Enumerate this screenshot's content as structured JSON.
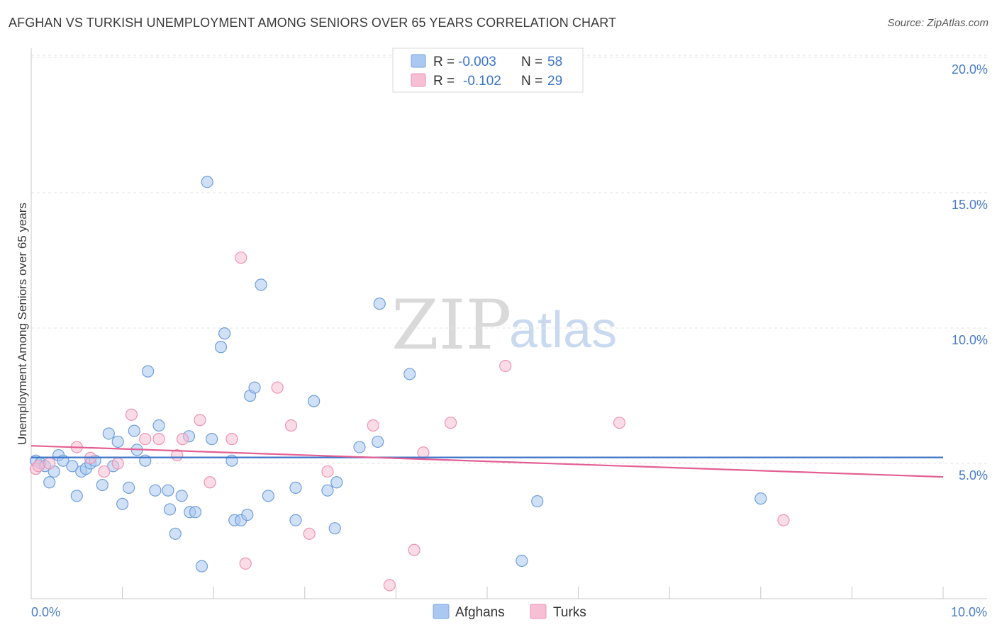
{
  "header": {
    "title": "AFGHAN VS TURKISH UNEMPLOYMENT AMONG SENIORS OVER 65 YEARS CORRELATION CHART",
    "source": "Source: ZipAtlas.com"
  },
  "watermark": {
    "zip": "ZIP",
    "atlas": "atlas"
  },
  "legend": {
    "rows": [
      {
        "r_label": "R =",
        "r_value": "-0.003",
        "n_label": "N =",
        "n_value": "58",
        "color": "#aac8f0",
        "stroke": "#7aa6e0"
      },
      {
        "r_label": "R =",
        "r_value": "-0.102",
        "n_label": "N =",
        "n_value": "29",
        "color": "#f6bfd3",
        "stroke": "#ee93b4"
      }
    ]
  },
  "bottom_legend": {
    "series1": "Afghans",
    "series2": "Turks"
  },
  "chart_data": {
    "type": "scatter",
    "title": "AFGHAN VS TURKISH UNEMPLOYMENT AMONG SENIORS OVER 65 YEARS CORRELATION CHART",
    "xlabel": "",
    "ylabel": "Unemployment Among Seniors over 65 years",
    "xlim": [
      0,
      10
    ],
    "ylim": [
      0,
      20
    ],
    "x_tick_labels": [
      "0.0%",
      "10.0%"
    ],
    "y_tick_labels": [
      "5.0%",
      "10.0%",
      "15.0%",
      "20.0%"
    ],
    "y_tick_values": [
      5,
      10,
      15,
      20
    ],
    "grid": true,
    "legend_position": "top-center",
    "series": [
      {
        "name": "Afghans",
        "color": "#aac8f0",
        "stroke": "#6f9fdc",
        "trend": {
          "x": [
            0,
            10
          ],
          "y": [
            5.22,
            5.22
          ],
          "color": "#3d74c8"
        },
        "points": [
          [
            0.05,
            5.1
          ],
          [
            0.1,
            5.0
          ],
          [
            0.15,
            4.9
          ],
          [
            0.2,
            4.3
          ],
          [
            0.25,
            4.7
          ],
          [
            0.3,
            5.3
          ],
          [
            0.35,
            5.1
          ],
          [
            0.45,
            4.9
          ],
          [
            0.5,
            3.8
          ],
          [
            0.55,
            4.7
          ],
          [
            0.6,
            4.8
          ],
          [
            0.65,
            5.0
          ],
          [
            0.7,
            5.1
          ],
          [
            0.78,
            4.2
          ],
          [
            0.85,
            6.1
          ],
          [
            0.9,
            4.9
          ],
          [
            0.95,
            5.8
          ],
          [
            1.0,
            3.5
          ],
          [
            1.07,
            4.1
          ],
          [
            1.13,
            6.2
          ],
          [
            1.16,
            5.5
          ],
          [
            1.25,
            5.1
          ],
          [
            1.28,
            8.4
          ],
          [
            1.36,
            4.0
          ],
          [
            1.4,
            6.4
          ],
          [
            1.5,
            4.0
          ],
          [
            1.52,
            3.3
          ],
          [
            1.58,
            2.4
          ],
          [
            1.65,
            3.8
          ],
          [
            1.73,
            6.0
          ],
          [
            1.74,
            3.2
          ],
          [
            1.8,
            3.2
          ],
          [
            1.87,
            1.2
          ],
          [
            1.93,
            15.4
          ],
          [
            1.98,
            5.9
          ],
          [
            2.08,
            9.3
          ],
          [
            2.12,
            9.8
          ],
          [
            2.2,
            5.1
          ],
          [
            2.23,
            2.9
          ],
          [
            2.3,
            2.9
          ],
          [
            2.37,
            3.1
          ],
          [
            2.4,
            7.5
          ],
          [
            2.45,
            7.8
          ],
          [
            2.52,
            11.6
          ],
          [
            2.6,
            3.8
          ],
          [
            2.9,
            2.9
          ],
          [
            2.9,
            4.1
          ],
          [
            3.1,
            7.3
          ],
          [
            3.25,
            4.0
          ],
          [
            3.33,
            2.6
          ],
          [
            3.35,
            4.3
          ],
          [
            3.6,
            5.6
          ],
          [
            3.8,
            5.8
          ],
          [
            3.82,
            10.9
          ],
          [
            4.15,
            8.3
          ],
          [
            5.38,
            1.4
          ],
          [
            5.55,
            3.6
          ],
          [
            8.0,
            3.7
          ]
        ]
      },
      {
        "name": "Turks",
        "color": "#f6bfd3",
        "stroke": "#ee93b4",
        "trend": {
          "x": [
            0,
            10
          ],
          "y": [
            5.65,
            4.5
          ],
          "color": "#e35f92"
        },
        "points": [
          [
            0.05,
            4.8
          ],
          [
            0.2,
            5.0
          ],
          [
            0.5,
            5.6
          ],
          [
            0.65,
            5.2
          ],
          [
            0.8,
            4.7
          ],
          [
            0.95,
            5.0
          ],
          [
            1.1,
            6.8
          ],
          [
            1.25,
            5.9
          ],
          [
            1.4,
            5.9
          ],
          [
            1.6,
            5.3
          ],
          [
            1.66,
            5.9
          ],
          [
            1.85,
            6.6
          ],
          [
            1.96,
            4.3
          ],
          [
            2.2,
            5.9
          ],
          [
            2.3,
            12.6
          ],
          [
            2.35,
            1.3
          ],
          [
            2.7,
            7.8
          ],
          [
            2.85,
            6.4
          ],
          [
            3.05,
            2.4
          ],
          [
            3.25,
            4.7
          ],
          [
            3.75,
            6.4
          ],
          [
            3.93,
            0.5
          ],
          [
            4.2,
            1.8
          ],
          [
            4.3,
            5.4
          ],
          [
            4.6,
            6.5
          ],
          [
            5.2,
            8.6
          ],
          [
            6.45,
            6.5
          ],
          [
            8.25,
            2.9
          ],
          [
            0.08,
            4.9
          ]
        ]
      }
    ]
  }
}
